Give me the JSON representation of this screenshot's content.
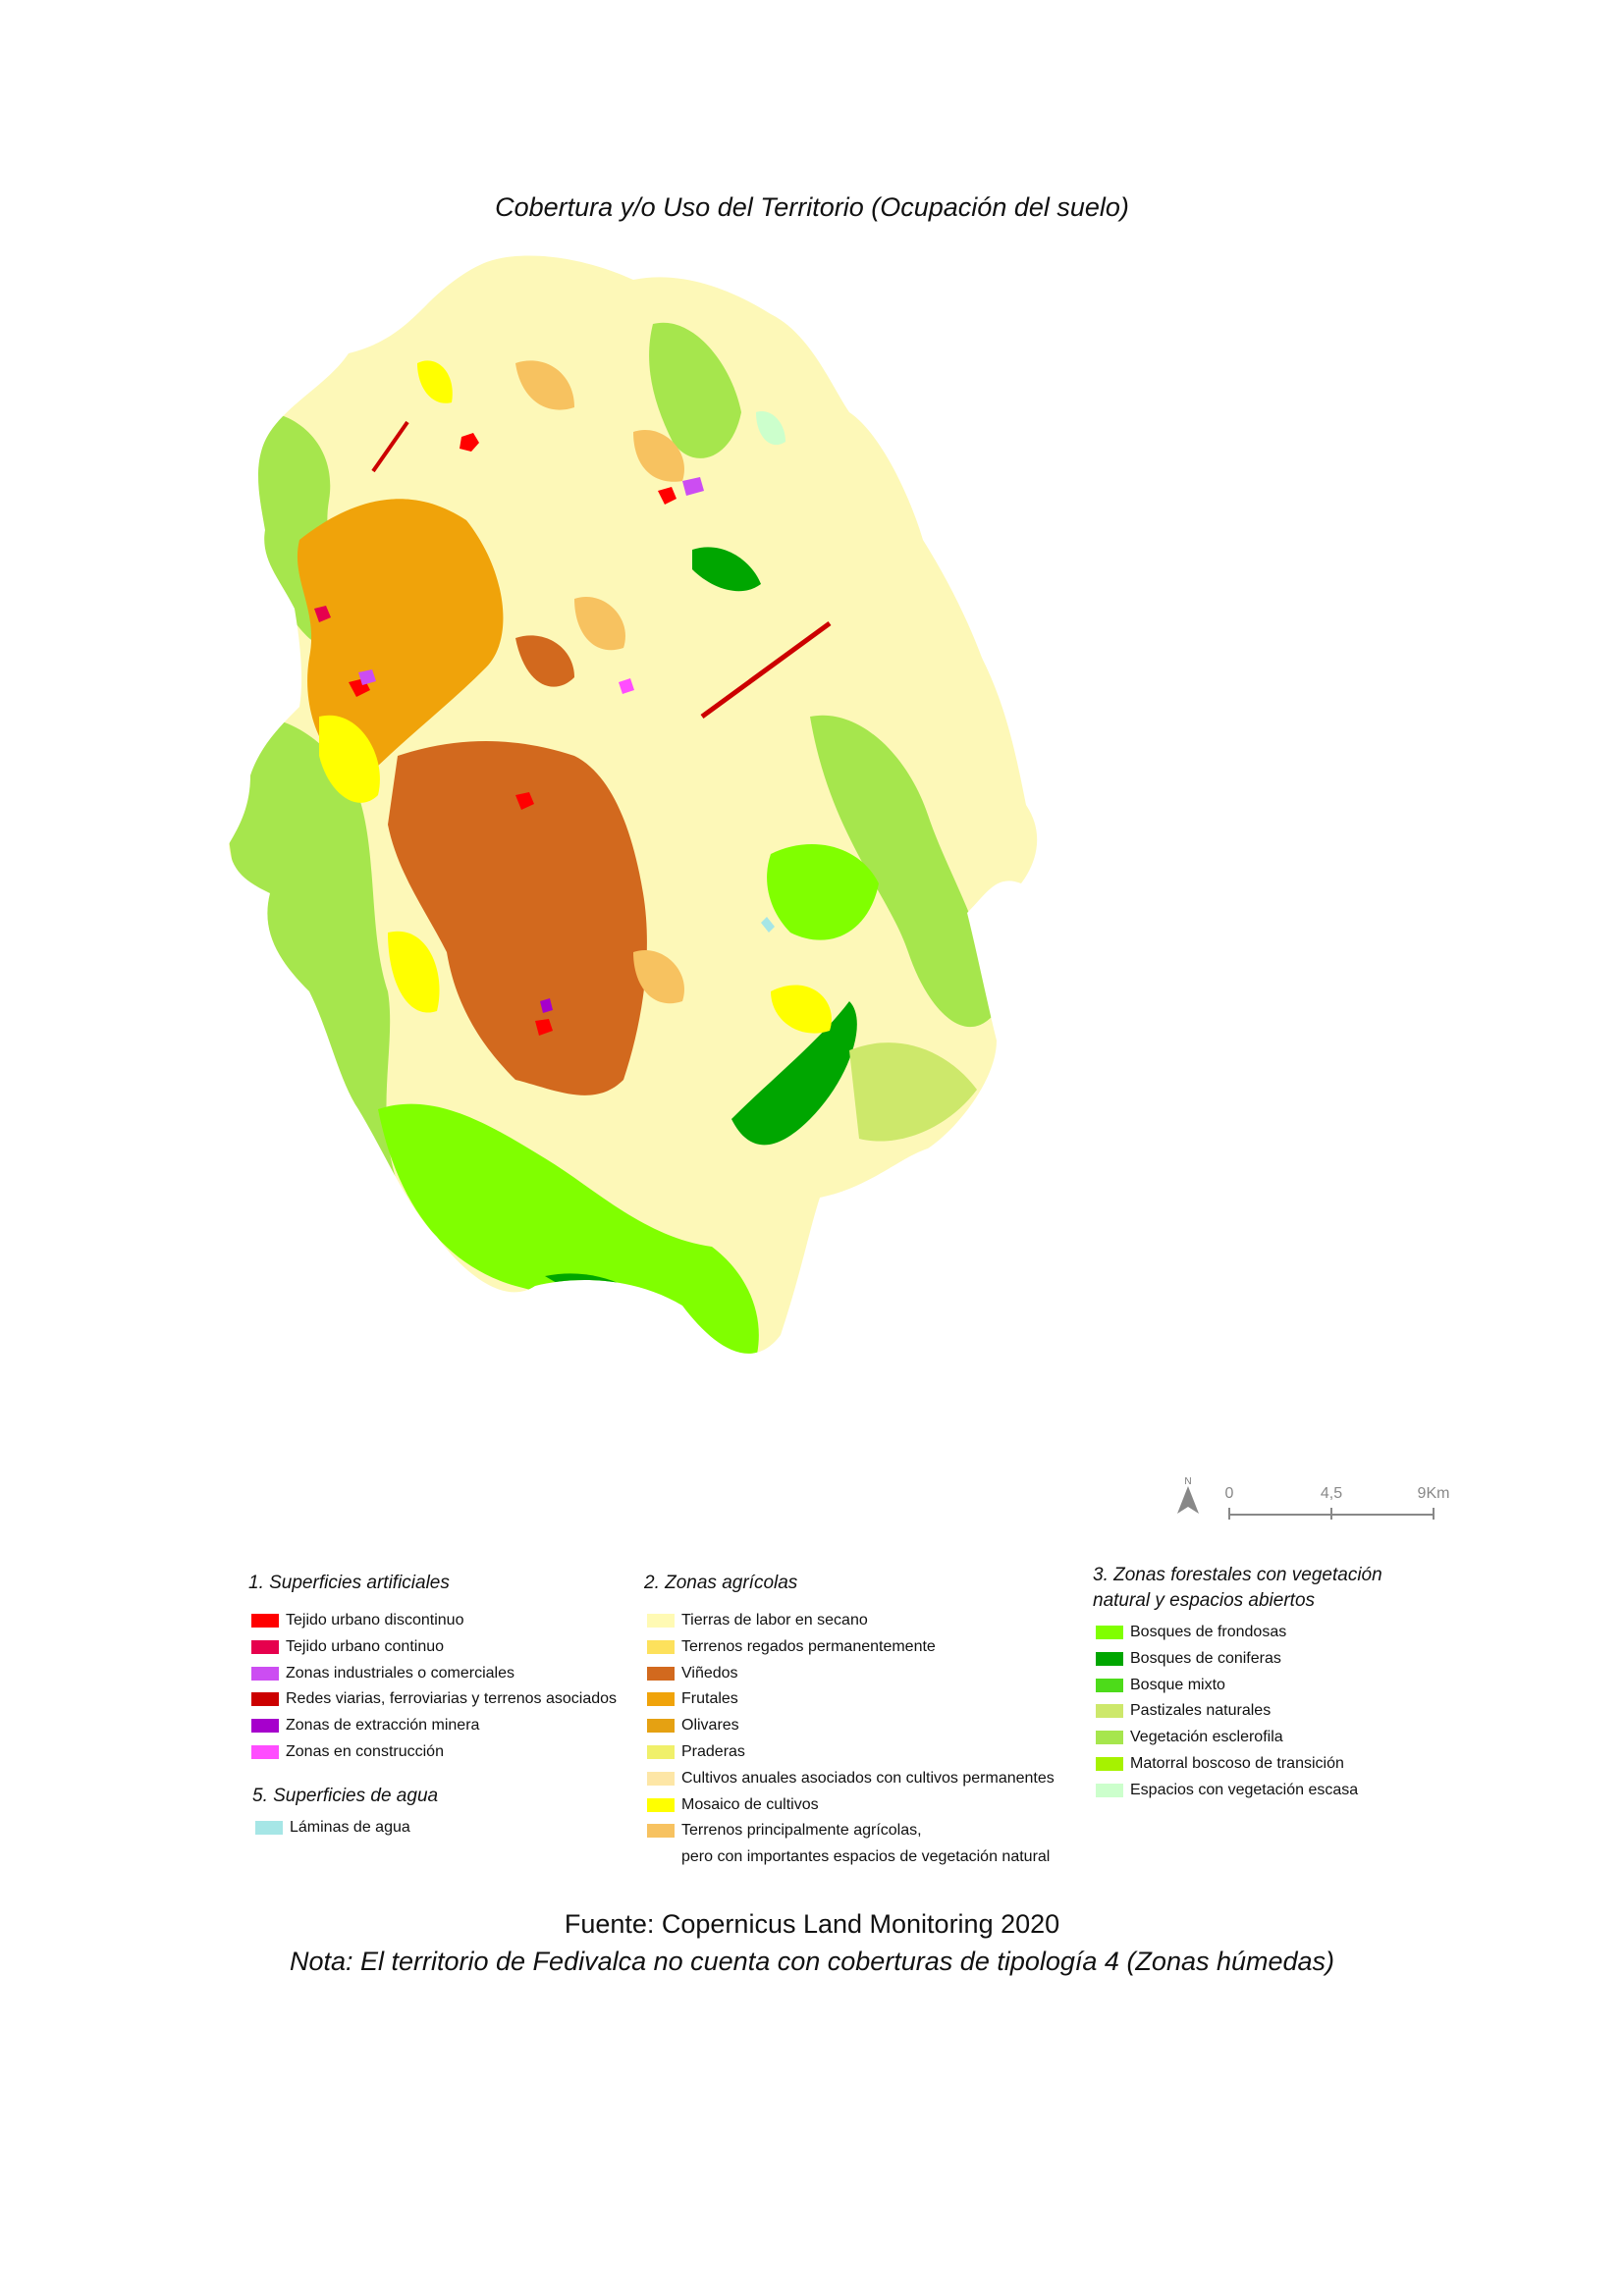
{
  "title": "Cobertura y/o Uso del Territorio (Ocupación del suelo)",
  "colors": {
    "land_base": "#fdf8b8",
    "tierras_secano": "#fffab4",
    "terrenos_regados": "#fde15c",
    "vinedos": "#d2691e",
    "frutales": "#f0a30a",
    "olivares": "#e5a112",
    "praderas": "#f0f06a",
    "cultivos_anuales": "#fde6a6",
    "mosaico": "#ffff00",
    "terrenos_agricolas": "#f7c260",
    "bosques_frondosas": "#80ff00",
    "bosques_coniferas": "#00a600",
    "bosque_mixto": "#4ddb1a",
    "pastizales": "#cde86b",
    "esclerofila": "#a6e64d",
    "matorral": "#a6f200",
    "escasa": "#ccffcc",
    "tejido_discontinuo": "#ff0000",
    "tejido_continuo": "#e6004d",
    "industriales": "#cc4df2",
    "redes": "#cc0000",
    "extraccion": "#a600cc",
    "construccion": "#ff4dff",
    "laminas": "#a6e6e6"
  },
  "scale": {
    "north": "N",
    "labels": [
      "0",
      "4,5",
      "9Km"
    ]
  },
  "legend": {
    "artificial": {
      "heading": "1. Superficies artificiales",
      "items": [
        {
          "label": "Tejido urbano discontinuo",
          "color": "#ff0000"
        },
        {
          "label": "Tejido urbano continuo",
          "color": "#e6004d"
        },
        {
          "label": "Zonas industriales o comerciales",
          "color": "#cc4df2"
        },
        {
          "label": "Redes viarias, ferroviarias y terrenos asociados",
          "color": "#cc0000"
        },
        {
          "label": "Zonas de extracción minera",
          "color": "#a600cc"
        },
        {
          "label": "Zonas en construcción",
          "color": "#ff4dff"
        }
      ]
    },
    "agua": {
      "heading": "5. Superficies de agua",
      "items": [
        {
          "label": "Láminas de agua",
          "color": "#a6e6e6"
        }
      ]
    },
    "agricolas": {
      "heading": "2. Zonas agrícolas",
      "items": [
        {
          "label": "Tierras de labor en secano",
          "color": "#fffab4"
        },
        {
          "label": "Terrenos regados permanentemente",
          "color": "#fde15c"
        },
        {
          "label": "Viñedos",
          "color": "#d2691e"
        },
        {
          "label": "Frutales",
          "color": "#f0a30a"
        },
        {
          "label": "Olivares",
          "color": "#e5a112"
        },
        {
          "label": "Praderas",
          "color": "#f0f06a"
        },
        {
          "label": "Cultivos anuales asociados con cultivos permanentes",
          "color": "#fde6a6"
        },
        {
          "label": "Mosaico de cultivos",
          "color": "#ffff00"
        },
        {
          "label": "Terrenos principalmente agrícolas,",
          "label2": "pero con importantes espacios de vegetación natural",
          "color": "#f7c260"
        }
      ]
    },
    "forestales": {
      "heading": "3. Zonas forestales con vegetación",
      "heading2": "natural y espacios abiertos",
      "items": [
        {
          "label": "Bosques de frondosas",
          "color": "#80ff00"
        },
        {
          "label": "Bosques de coniferas",
          "color": "#00a600"
        },
        {
          "label": "Bosque mixto",
          "color": "#4ddb1a"
        },
        {
          "label": "Pastizales naturales",
          "color": "#cde86b"
        },
        {
          "label": "Vegetación esclerofila",
          "color": "#a6e64d"
        },
        {
          "label": "Matorral boscoso de transición",
          "color": "#a6f200"
        },
        {
          "label": "Espacios con vegetación escasa",
          "color": "#ccffcc"
        }
      ]
    }
  },
  "footer": {
    "source": "Fuente: Copernicus Land Monitoring 2020",
    "note": "Nota: El territorio de Fedivalca no cuenta con coberturas de tipología 4 (Zonas húmedas)"
  }
}
